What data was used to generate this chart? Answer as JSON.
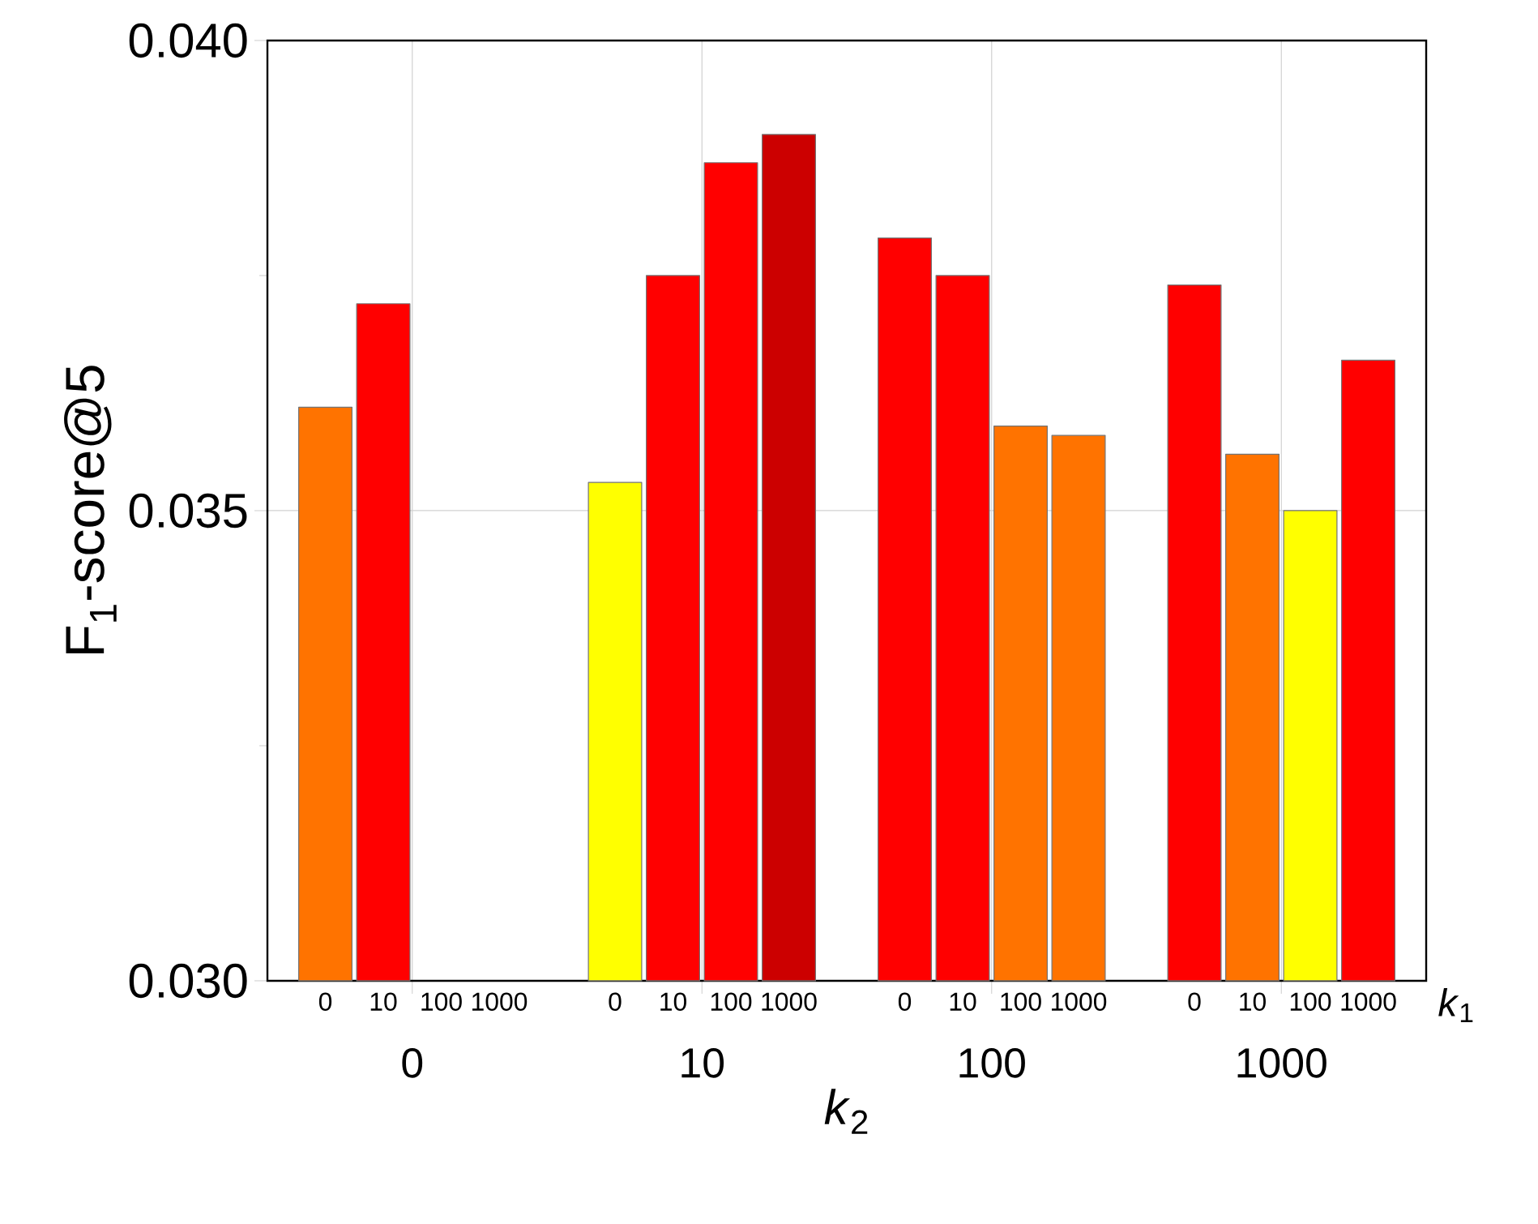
{
  "chart_data": {
    "type": "bar",
    "categories": [
      "0",
      "10",
      "100",
      "1000"
    ],
    "xlabel": "*k*$_{2}$",
    "ylabel": "F$_{1}$-score@5",
    "annotations": [
      "*k*$_{1}$"
    ],
    "ylim": [
      0.03,
      0.04
    ],
    "yticks": [
      {
        "value": 0.03,
        "label": "0.030"
      },
      {
        "value": 0.0325,
        "label": null
      },
      {
        "value": 0.035,
        "label": "0.035"
      },
      {
        "value": 0.0375,
        "label": null
      },
      {
        "value": 0.04,
        "label": "0.040"
      }
    ],
    "grid": true,
    "series": [
      {
        "name": "0",
        "values": [
          0.0361,
          0.0353,
          0.0379,
          0.0374
        ],
        "colors": [
          "#ff7300",
          "#ffff00",
          "#ff0000",
          "#ff0000"
        ]
      },
      {
        "name": "10",
        "values": [
          0.0372,
          0.0375,
          0.0375,
          0.0356
        ],
        "colors": [
          "#ff0000",
          "#ff0000",
          "#ff0000",
          "#ff7300"
        ]
      },
      {
        "name": "100",
        "values": [
          null,
          0.0387,
          0.0359,
          0.035
        ],
        "colors": [
          null,
          "#ff0000",
          "#ff7300",
          "#ffff00"
        ]
      },
      {
        "name": "1000",
        "values": [
          null,
          0.039,
          0.0358,
          0.0366
        ],
        "colors": [
          null,
          "#cc0000",
          "#ff7300",
          "#ff0000"
        ]
      }
    ]
  }
}
